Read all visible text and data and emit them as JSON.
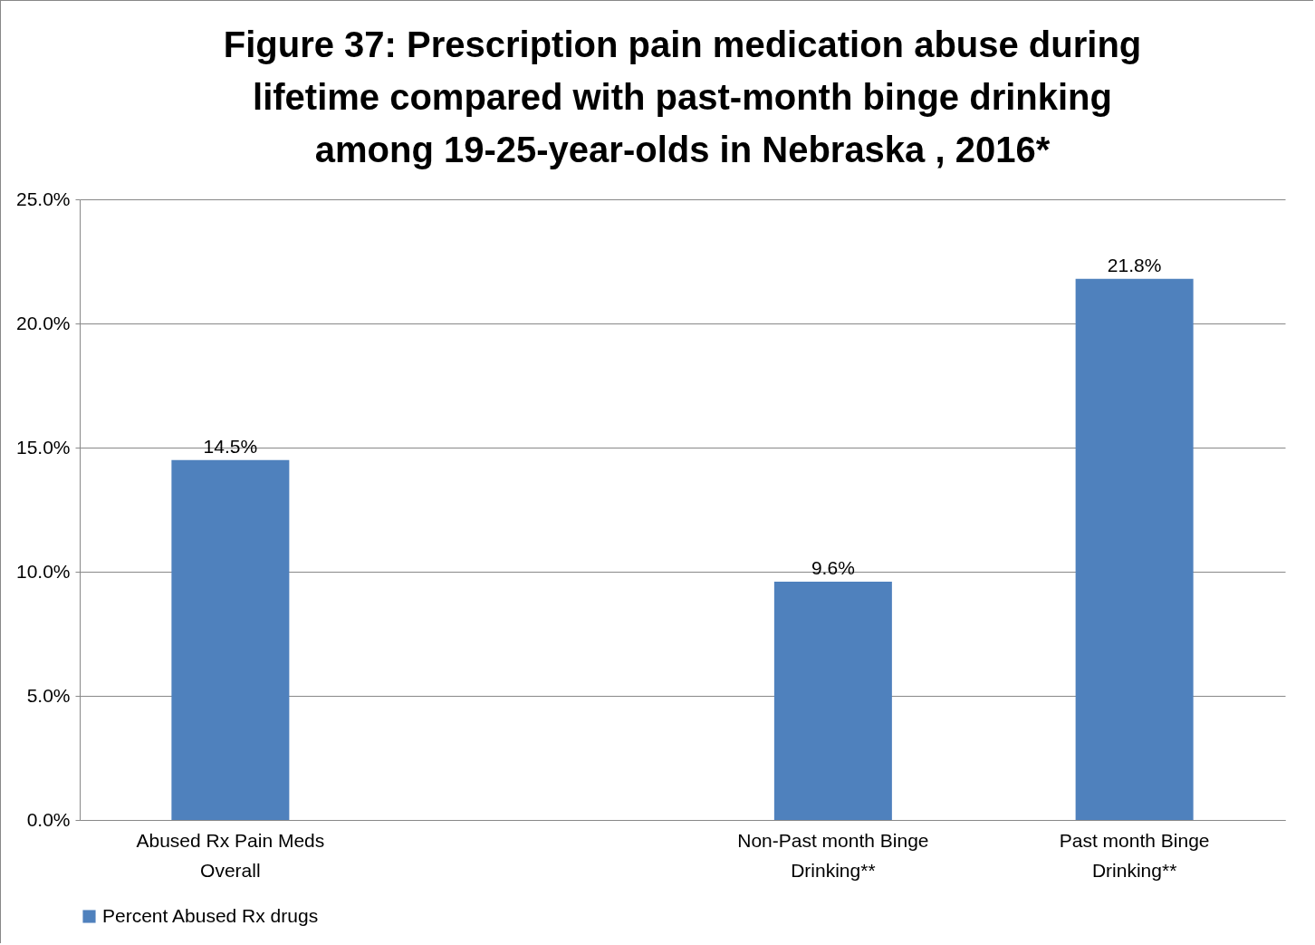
{
  "chart_data": {
    "type": "bar",
    "title": "Figure 37: Prescription pain medication abuse during lifetime compared with past-month binge drinking among 19-25-year-olds in Nebraska , 2016*",
    "categories": [
      "Abused Rx Pain Meds Overall",
      null,
      "Non-Past month Binge Drinking**",
      "Past month Binge Drinking**"
    ],
    "series": [
      {
        "name": "Percent Abused Rx drugs",
        "color": "#4f81bd",
        "values": [
          14.5,
          null,
          9.6,
          21.8
        ],
        "value_labels": [
          "14.5%",
          null,
          "9.6%",
          "21.8%"
        ]
      }
    ],
    "ylim": [
      0,
      25
    ],
    "yticks": [
      {
        "value": 0,
        "label": "0.0%"
      },
      {
        "value": 5,
        "label": "5.0%"
      },
      {
        "value": 10,
        "label": "10.0%"
      },
      {
        "value": 15,
        "label": "15.0%"
      },
      {
        "value": 20,
        "label": "20.0%"
      },
      {
        "value": 25,
        "label": "25.0%"
      }
    ],
    "grid": "y",
    "legend": "bottom"
  }
}
